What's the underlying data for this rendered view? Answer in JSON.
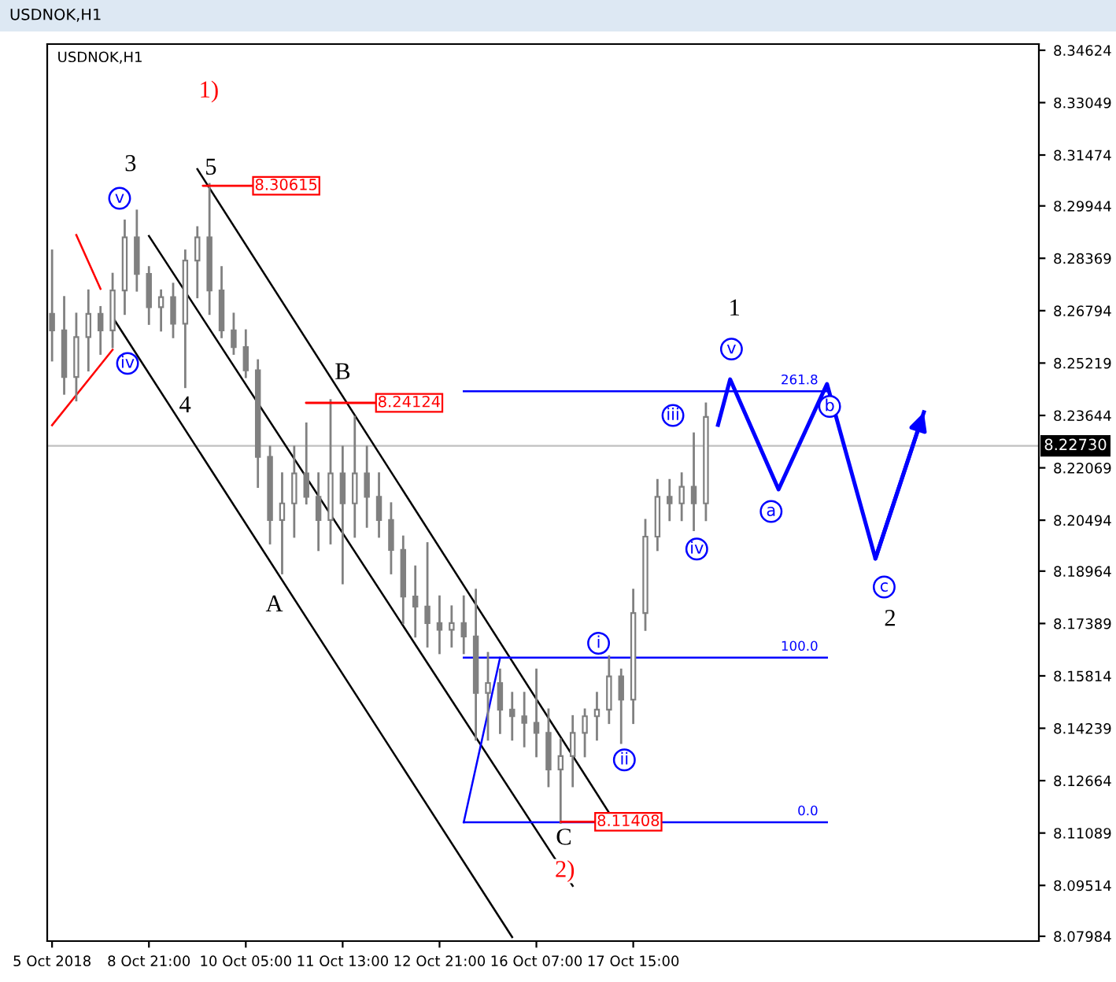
{
  "chart_data": {
    "type": "candlestick",
    "title": "USDNOK,H1",
    "subtitle": "USDNOK,H1",
    "color": "#808080",
    "categories": [
      "5 Oct 2018",
      null,
      null,
      null,
      null,
      null,
      null,
      null,
      "8 Oct 21:00",
      null,
      null,
      null,
      null,
      null,
      null,
      null,
      "10 Oct 05:00",
      null,
      null,
      null,
      null,
      null,
      null,
      null,
      "11 Oct 13:00",
      null,
      null,
      null,
      null,
      null,
      null,
      null,
      "12 Oct 21:00",
      null,
      null,
      null,
      null,
      null,
      null,
      null,
      "16 Oct 07:00",
      null,
      null,
      null,
      null,
      null,
      null,
      null,
      "17 Oct 15:00",
      null,
      null,
      null,
      null,
      null,
      null,
      null,
      null,
      null,
      null,
      null,
      null,
      null,
      null,
      null,
      null,
      null,
      null,
      null,
      null,
      null,
      null,
      null,
      null,
      null,
      null,
      null,
      null,
      null,
      null,
      null,
      null,
      null
    ],
    "ohlc": [
      [
        8.267,
        8.286,
        8.253,
        8.262
      ],
      [
        8.262,
        8.272,
        8.243,
        8.248
      ],
      [
        8.248,
        8.267,
        8.241,
        8.26
      ],
      [
        8.26,
        8.274,
        8.25,
        8.267
      ],
      [
        8.267,
        8.269,
        8.255,
        8.262
      ],
      [
        8.262,
        8.279,
        8.257,
        8.274
      ],
      [
        8.274,
        8.295,
        8.267,
        8.29
      ],
      [
        8.29,
        8.298,
        8.274,
        8.279
      ],
      [
        8.279,
        8.281,
        8.264,
        8.269
      ],
      [
        8.269,
        8.274,
        8.262,
        8.272
      ],
      [
        8.272,
        8.276,
        8.26,
        8.264
      ],
      [
        8.264,
        8.286,
        8.245,
        8.283
      ],
      [
        8.283,
        8.293,
        8.272,
        8.29
      ],
      [
        8.29,
        8.306,
        8.267,
        8.274
      ],
      [
        8.274,
        8.281,
        8.26,
        8.262
      ],
      [
        8.262,
        8.267,
        8.255,
        8.257
      ],
      [
        8.257,
        8.262,
        8.248,
        8.25
      ],
      [
        8.25,
        8.253,
        8.215,
        8.224
      ],
      [
        8.224,
        8.227,
        8.198,
        8.205
      ],
      [
        8.205,
        8.219,
        8.189,
        8.21
      ],
      [
        8.21,
        8.227,
        8.2,
        8.219
      ],
      [
        8.219,
        8.234,
        8.21,
        8.212
      ],
      [
        8.212,
        8.219,
        8.196,
        8.205
      ],
      [
        8.205,
        8.241,
        8.198,
        8.219
      ],
      [
        8.219,
        8.227,
        8.186,
        8.21
      ],
      [
        8.21,
        8.236,
        8.2,
        8.219
      ],
      [
        8.219,
        8.227,
        8.203,
        8.212
      ],
      [
        8.212,
        8.219,
        8.2,
        8.205
      ],
      [
        8.205,
        8.21,
        8.189,
        8.196
      ],
      [
        8.196,
        8.2,
        8.174,
        8.182
      ],
      [
        8.182,
        8.191,
        8.17,
        8.179
      ],
      [
        8.179,
        8.198,
        8.167,
        8.174
      ],
      [
        8.174,
        8.182,
        8.165,
        8.172
      ],
      [
        8.172,
        8.179,
        8.167,
        8.174
      ],
      [
        8.174,
        8.182,
        8.165,
        8.17
      ],
      [
        8.17,
        8.184,
        8.139,
        8.153
      ],
      [
        8.153,
        8.165,
        8.139,
        8.156
      ],
      [
        8.156,
        8.16,
        8.141,
        8.148
      ],
      [
        8.148,
        8.153,
        8.139,
        8.146
      ],
      [
        8.146,
        8.153,
        8.137,
        8.144
      ],
      [
        8.144,
        8.16,
        8.134,
        8.141
      ],
      [
        8.141,
        8.148,
        8.125,
        8.13
      ],
      [
        8.13,
        8.139,
        8.114,
        8.134
      ],
      [
        8.134,
        8.146,
        8.125,
        8.141
      ],
      [
        8.141,
        8.148,
        8.134,
        8.146
      ],
      [
        8.146,
        8.153,
        8.139,
        8.148
      ],
      [
        8.148,
        8.164,
        8.144,
        8.158
      ],
      [
        8.158,
        8.16,
        8.138,
        8.151
      ],
      [
        8.151,
        8.184,
        8.144,
        8.177
      ],
      [
        8.177,
        8.205,
        8.172,
        8.2
      ],
      [
        8.2,
        8.217,
        8.196,
        8.212
      ],
      [
        8.212,
        8.217,
        8.205,
        8.21
      ],
      [
        8.21,
        8.219,
        8.205,
        8.215
      ],
      [
        8.215,
        8.231,
        8.202,
        8.21
      ],
      [
        8.21,
        8.24,
        8.205,
        8.236
      ],
      null,
      null,
      null,
      null,
      null,
      null,
      null,
      null,
      null,
      null,
      null,
      null,
      null,
      null,
      null,
      null,
      null,
      null,
      null,
      null,
      null,
      null,
      null,
      null,
      null,
      null,
      null
    ],
    "series": [
      {
        "type": "line",
        "color": "#000000",
        "values": [
          null,
          null,
          null,
          null,
          null,
          null,
          null,
          null,
          null,
          null,
          null,
          null,
          8.3105,
          null,
          null,
          null,
          null,
          null,
          null,
          null,
          null,
          null,
          null,
          null,
          null,
          null,
          null,
          null,
          null,
          null,
          null,
          null,
          null,
          null,
          null,
          null,
          null,
          null,
          null,
          null,
          null,
          null,
          null,
          null,
          null,
          null,
          8.117,
          null,
          null,
          null,
          null,
          null,
          null,
          null,
          null,
          null,
          null,
          null,
          null,
          null,
          null,
          null,
          null,
          null,
          null,
          null,
          null,
          null,
          null,
          null,
          null,
          null,
          null,
          null,
          null,
          null,
          null,
          null,
          null,
          null,
          null,
          null
        ]
      },
      {
        "type": "line",
        "color": "#000000",
        "values": [
          null,
          null,
          null,
          null,
          null,
          null,
          null,
          null,
          8.2904,
          null,
          null,
          null,
          null,
          null,
          null,
          null,
          null,
          null,
          null,
          null,
          null,
          null,
          null,
          null,
          null,
          null,
          null,
          null,
          null,
          null,
          null,
          null,
          null,
          null,
          null,
          null,
          null,
          null,
          null,
          null,
          null,
          null,
          null,
          8.095,
          null,
          null,
          null,
          null,
          null,
          null,
          null,
          null,
          null,
          null,
          null,
          null,
          null,
          null,
          null,
          null,
          null,
          null,
          null,
          null,
          null,
          null,
          null,
          null,
          null,
          null,
          null,
          null,
          null,
          null,
          null,
          null,
          null,
          null,
          null,
          null,
          null,
          null
        ]
      },
      {
        "type": "line",
        "color": "#000000",
        "values": [
          null,
          null,
          null,
          null,
          null,
          8.266,
          null,
          null,
          null,
          null,
          null,
          null,
          null,
          null,
          null,
          null,
          null,
          null,
          null,
          null,
          null,
          null,
          null,
          null,
          null,
          null,
          null,
          null,
          null,
          null,
          null,
          null,
          null,
          null,
          null,
          null,
          null,
          null,
          8.0796,
          null,
          null,
          null,
          null,
          null,
          null,
          null,
          null,
          null,
          null,
          null,
          null,
          null,
          null,
          null,
          null,
          null,
          null,
          null,
          null,
          null,
          null,
          null,
          null,
          null,
          null,
          null,
          null,
          null,
          null,
          null,
          null,
          null,
          null,
          null,
          null,
          null,
          null,
          null,
          null,
          null,
          null,
          null
        ]
      },
      {
        "type": "line",
        "color": "#ff0000",
        "values": [
          8.2335,
          null,
          null,
          null,
          null,
          8.2562,
          null,
          null,
          null,
          null,
          null,
          null,
          null,
          null,
          null,
          null,
          null,
          null,
          null,
          null,
          null,
          null,
          null,
          null,
          null,
          null,
          null,
          null,
          null,
          null,
          null,
          null,
          null,
          null,
          null,
          null,
          null,
          null,
          null,
          null,
          null,
          null,
          null,
          null,
          null,
          null,
          null,
          null,
          null,
          null,
          null,
          null,
          null,
          null,
          null,
          null,
          null,
          null,
          null,
          null,
          null,
          null,
          null,
          null,
          null,
          null,
          null,
          null,
          null,
          null,
          null,
          null,
          null,
          null,
          null,
          null,
          null,
          null,
          null,
          null,
          null,
          null
        ]
      },
      {
        "type": "line",
        "color": "#ff0000",
        "values": [
          null,
          null,
          8.2907,
          null,
          8.2745,
          null,
          null,
          null,
          null,
          null,
          null,
          null,
          null,
          null,
          null,
          null,
          null,
          null,
          null,
          null,
          null,
          null,
          null,
          null,
          null,
          null,
          null,
          null,
          null,
          null,
          null,
          null,
          null,
          null,
          null,
          null,
          null,
          null,
          null,
          null,
          null,
          null,
          null,
          null,
          null,
          null,
          null,
          null,
          null,
          null,
          null,
          null,
          null,
          null,
          null,
          null,
          null,
          null,
          null,
          null,
          null,
          null,
          null,
          null,
          null,
          null,
          null,
          null,
          null,
          null,
          null,
          null,
          null,
          null,
          null,
          null,
          null,
          null,
          null,
          null,
          null,
          null
        ]
      },
      {
        "type": "line",
        "color": "#0000ff",
        "values": [
          null,
          null,
          null,
          null,
          null,
          null,
          null,
          null,
          null,
          null,
          null,
          null,
          null,
          null,
          null,
          null,
          null,
          null,
          null,
          null,
          null,
          null,
          null,
          null,
          null,
          null,
          null,
          null,
          null,
          null,
          null,
          null,
          null,
          null,
          8.1141,
          null,
          null,
          8.1636,
          null,
          null,
          null,
          null,
          null,
          null,
          null,
          null,
          null,
          null,
          null,
          null,
          null,
          null,
          null,
          null,
          null,
          null,
          null,
          null,
          null,
          null,
          null,
          null,
          null,
          null,
          null,
          null,
          null,
          null,
          null,
          null,
          null,
          null,
          null,
          null,
          null,
          null,
          null,
          null,
          null,
          null,
          null,
          null
        ]
      },
      {
        "type": "line",
        "name": "261.8",
        "color": "#0000ff",
        "values": [
          null,
          null,
          null,
          null,
          null,
          null,
          null,
          null,
          null,
          null,
          null,
          null,
          null,
          null,
          null,
          null,
          null,
          null,
          null,
          null,
          null,
          null,
          null,
          null,
          null,
          null,
          null,
          null,
          null,
          null,
          null,
          null,
          null,
          null,
          8.2437,
          null,
          null,
          null,
          null,
          null,
          null,
          null,
          null,
          null,
          null,
          null,
          null,
          null,
          null,
          null,
          null,
          null,
          null,
          null,
          null,
          null,
          null,
          null,
          null,
          null,
          null,
          null,
          null,
          null,
          8.2437,
          null,
          null,
          null,
          null,
          null,
          null,
          null,
          null,
          null,
          null,
          null,
          null,
          null,
          null,
          null,
          null,
          null
        ]
      },
      {
        "type": "line",
        "name": "100.0",
        "color": "#0000ff",
        "values": [
          null,
          null,
          null,
          null,
          null,
          null,
          null,
          null,
          null,
          null,
          null,
          null,
          null,
          null,
          null,
          null,
          null,
          null,
          null,
          null,
          null,
          null,
          null,
          null,
          null,
          null,
          null,
          null,
          null,
          null,
          null,
          null,
          null,
          null,
          8.1636,
          null,
          null,
          null,
          null,
          null,
          null,
          null,
          null,
          null,
          null,
          null,
          null,
          null,
          null,
          null,
          null,
          null,
          null,
          null,
          null,
          null,
          null,
          null,
          null,
          null,
          null,
          null,
          null,
          null,
          8.1636,
          null,
          null,
          null,
          null,
          null,
          null,
          null,
          null,
          null,
          null,
          null,
          null,
          null,
          null,
          null,
          null,
          null
        ]
      },
      {
        "type": "line",
        "name": "0.0",
        "color": "#0000ff",
        "values": [
          null,
          null,
          null,
          null,
          null,
          null,
          null,
          null,
          null,
          null,
          null,
          null,
          null,
          null,
          null,
          null,
          null,
          null,
          null,
          null,
          null,
          null,
          null,
          null,
          null,
          null,
          null,
          null,
          null,
          null,
          null,
          null,
          null,
          null,
          8.1141,
          null,
          null,
          null,
          null,
          null,
          null,
          null,
          null,
          null,
          null,
          null,
          null,
          null,
          null,
          null,
          null,
          null,
          null,
          null,
          null,
          null,
          null,
          null,
          null,
          null,
          null,
          null,
          null,
          null,
          8.1141,
          null,
          null,
          null,
          null,
          null,
          null,
          null,
          null,
          null,
          null,
          null,
          null,
          null,
          null,
          null,
          null,
          null
        ]
      },
      {
        "type": "line",
        "color": "#0000ff",
        "values": [
          null,
          null,
          null,
          null,
          null,
          null,
          null,
          null,
          null,
          null,
          null,
          null,
          null,
          null,
          null,
          null,
          null,
          null,
          null,
          null,
          null,
          null,
          null,
          null,
          null,
          null,
          null,
          null,
          null,
          null,
          null,
          null,
          null,
          null,
          null,
          null,
          null,
          null,
          null,
          null,
          null,
          null,
          null,
          null,
          null,
          null,
          null,
          null,
          null,
          null,
          null,
          null,
          null,
          null,
          null,
          8.2336,
          8.2473,
          null,
          null,
          null,
          8.2142,
          null,
          null,
          null,
          8.2459,
          null,
          null,
          null,
          8.1934,
          null,
          null,
          null,
          8.2374,
          null,
          null,
          null,
          null,
          null,
          null,
          null,
          null,
          null
        ]
      }
    ],
    "ref_lines": [
      {
        "axis": "y",
        "value": 8.2273,
        "label": "8.22730",
        "color": "#c0c0c0"
      }
    ],
    "annotations": [
      "1)",
      "5",
      "3",
      "v",
      "iv",
      "4",
      "A",
      "B",
      "C",
      "2)",
      "i",
      "ii",
      "iii",
      "iv",
      "v",
      "1",
      "a",
      "b",
      {
        "text": "c",
        "y": 8.1934
      },
      "2",
      "8.30615",
      "8.24124",
      "8.11408"
    ],
    "ylim": [
      8.0784,
      8.3481
    ],
    "yticks": [
      8.07984,
      8.09514,
      8.11089,
      8.12664,
      8.14239,
      8.15814,
      8.17389,
      8.18964,
      8.20494,
      8.22069,
      8.23644,
      8.25219,
      8.26794,
      8.28369,
      8.29944,
      8.31474,
      8.33049,
      8.34624
    ],
    "grid": false,
    "legend": false
  }
}
